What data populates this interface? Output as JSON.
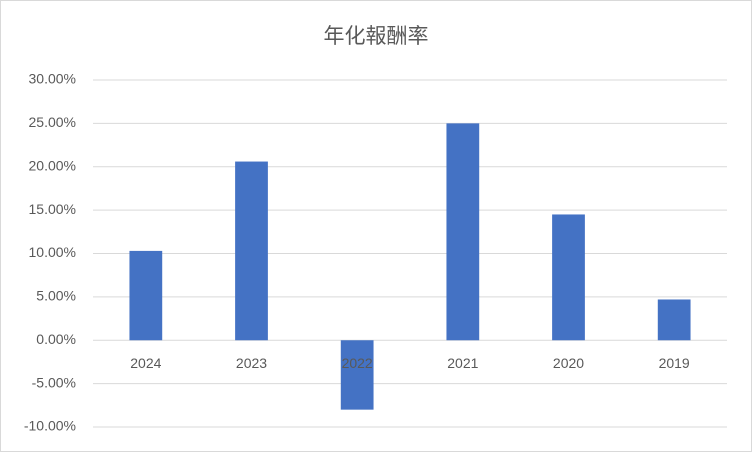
{
  "chart_data": {
    "type": "bar",
    "title": "年化報酬率",
    "categories": [
      "2024",
      "2023",
      "2022",
      "2021",
      "2020",
      "2019"
    ],
    "values": [
      10.3,
      20.6,
      -8.0,
      25.0,
      14.5,
      4.7
    ],
    "color": "#4472c4",
    "ylim": [
      -10,
      30
    ],
    "yticks": [
      {
        "value": -10,
        "label": "-10.00%"
      },
      {
        "value": -5,
        "label": "-5.00%"
      },
      {
        "value": 0,
        "label": "0.00%"
      },
      {
        "value": 5,
        "label": "5.00%"
      },
      {
        "value": 10,
        "label": "10.00%"
      },
      {
        "value": 15,
        "label": "15.00%"
      },
      {
        "value": 20,
        "label": "20.00%"
      },
      {
        "value": 25,
        "label": "25.00%"
      },
      {
        "value": 30,
        "label": "30.00%"
      }
    ],
    "grid": true
  }
}
